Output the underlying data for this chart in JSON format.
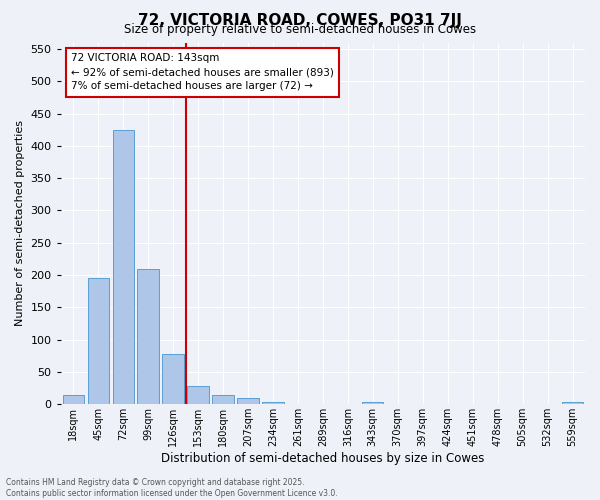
{
  "title": "72, VICTORIA ROAD, COWES, PO31 7JJ",
  "subtitle": "Size of property relative to semi-detached houses in Cowes",
  "xlabel": "Distribution of semi-detached houses by size in Cowes",
  "ylabel": "Number of semi-detached properties",
  "categories": [
    "18sqm",
    "45sqm",
    "72sqm",
    "99sqm",
    "126sqm",
    "153sqm",
    "180sqm",
    "207sqm",
    "234sqm",
    "261sqm",
    "289sqm",
    "316sqm",
    "343sqm",
    "370sqm",
    "397sqm",
    "424sqm",
    "451sqm",
    "478sqm",
    "505sqm",
    "532sqm",
    "559sqm"
  ],
  "values": [
    15,
    195,
    425,
    210,
    78,
    28,
    14,
    10,
    4,
    0,
    0,
    0,
    4,
    0,
    0,
    0,
    0,
    0,
    0,
    0,
    4
  ],
  "bar_color": "#aec6e8",
  "bar_edge_color": "#5a9fd4",
  "vline_x": 4.5,
  "vline_color": "#cc0000",
  "annotation_title": "72 VICTORIA ROAD: 143sqm",
  "annotation_line1": "← 92% of semi-detached houses are smaller (893)",
  "annotation_line2": "7% of semi-detached houses are larger (72) →",
  "annotation_box_color": "#cc0000",
  "ylim": [
    0,
    560
  ],
  "yticks": [
    0,
    50,
    100,
    150,
    200,
    250,
    300,
    350,
    400,
    450,
    500,
    550
  ],
  "footer_line1": "Contains HM Land Registry data © Crown copyright and database right 2025.",
  "footer_line2": "Contains public sector information licensed under the Open Government Licence v3.0.",
  "bg_color": "#eef2f8",
  "plot_bg_color": "#eef2f8"
}
